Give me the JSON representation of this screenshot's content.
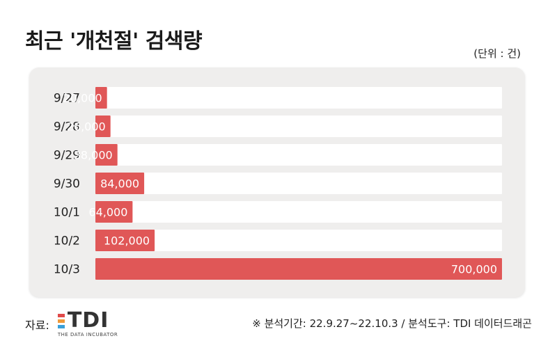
{
  "header": {
    "title": "최근 '개천절' 검색량",
    "unit": "(단위 : 건)"
  },
  "footer": {
    "source_label": "자료:",
    "logo_text": "TDI",
    "logo_subtext": "THE DATA INCUBATOR",
    "note": "※ 분석기간: 22.9.27~22.10.3 / 분석도구: TDI 데이터드래곤"
  },
  "colors": {
    "bar": "#e05757",
    "track": "#ffffff",
    "panel": "#efeeed",
    "logo_bars": [
      "#e04a4a",
      "#f09a3a",
      "#3aa0d8"
    ]
  },
  "chart_data": {
    "type": "bar",
    "orientation": "horizontal",
    "categories": [
      "9/27",
      "9/28",
      "9/29",
      "9/30",
      "10/1",
      "10/2",
      "10/3"
    ],
    "values": [
      20000,
      26000,
      38000,
      84000,
      64000,
      102000,
      700000
    ],
    "value_labels": [
      "20,000",
      "26,000",
      "38,000",
      "84,000",
      "64,000",
      "102,000",
      "700,000"
    ],
    "title": "최근 '개천절' 검색량",
    "unit": "(단위 : 건)"
  }
}
